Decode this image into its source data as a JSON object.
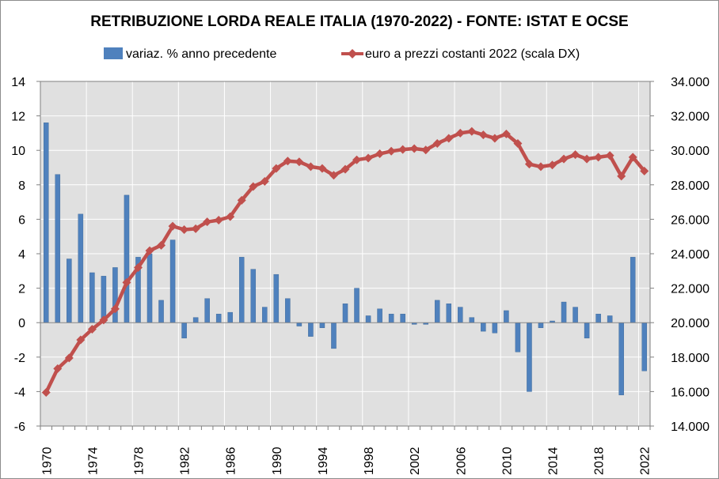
{
  "chart_data": {
    "type": "bar+line",
    "title": "RETRIBUZIONE LORDA REALE ITALIA (1970-2022) - FONTE: ISTAT E OCSE",
    "x": [
      1970,
      1971,
      1972,
      1973,
      1974,
      1975,
      1976,
      1977,
      1978,
      1979,
      1980,
      1981,
      1982,
      1983,
      1984,
      1985,
      1986,
      1987,
      1988,
      1989,
      1990,
      1991,
      1992,
      1993,
      1994,
      1995,
      1996,
      1997,
      1998,
      1999,
      2000,
      2001,
      2002,
      2003,
      2004,
      2005,
      2006,
      2007,
      2008,
      2009,
      2010,
      2011,
      2012,
      2013,
      2014,
      2015,
      2016,
      2017,
      2018,
      2019,
      2020,
      2021,
      2022
    ],
    "x_tick_labels": [
      "1970",
      "1974",
      "1978",
      "1982",
      "1986",
      "1990",
      "1994",
      "1998",
      "2002",
      "2006",
      "2010",
      "2014",
      "2018",
      "2022"
    ],
    "series": [
      {
        "name": "variaz. % anno precedente",
        "type": "bar",
        "axis": "left",
        "color": "#4f81bd",
        "values": [
          11.6,
          8.6,
          3.7,
          6.3,
          2.9,
          2.7,
          3.2,
          7.4,
          3.8,
          4.0,
          1.3,
          4.8,
          -0.9,
          0.3,
          1.4,
          0.5,
          0.6,
          3.8,
          3.1,
          0.9,
          2.8,
          1.4,
          -0.2,
          -0.8,
          -0.3,
          -1.5,
          1.1,
          2.0,
          0.4,
          0.8,
          0.5,
          0.5,
          -0.1,
          -0.1,
          1.3,
          1.1,
          0.9,
          0.3,
          -0.5,
          -0.6,
          0.7,
          -1.7,
          -4.0,
          -0.3,
          0.1,
          1.2,
          0.9,
          -0.9,
          0.5,
          0.4,
          -4.2,
          3.8,
          -2.8
        ]
      },
      {
        "name": "euro a prezzi costanti 2022 (scala DX)",
        "type": "line",
        "axis": "right",
        "color": "#c0504d",
        "values": [
          15950,
          17330,
          17950,
          19000,
          19620,
          20150,
          20800,
          22330,
          23200,
          24180,
          24490,
          25600,
          25400,
          25450,
          25850,
          25950,
          26150,
          27100,
          27900,
          28200,
          28950,
          29380,
          29330,
          29050,
          28950,
          28550,
          28900,
          29450,
          29550,
          29800,
          29950,
          30050,
          30100,
          30020,
          30400,
          30700,
          31000,
          31100,
          30900,
          30700,
          30950,
          30400,
          29200,
          29050,
          29150,
          29500,
          29750,
          29500,
          29600,
          29700,
          28500,
          29600,
          28800
        ]
      }
    ],
    "y_left": {
      "min": -6,
      "max": 14,
      "step": 2,
      "tick_labels": [
        "-6",
        "-4",
        "-2",
        "0",
        "2",
        "4",
        "6",
        "8",
        "10",
        "12",
        "14"
      ]
    },
    "y_right": {
      "min": 14000,
      "max": 34000,
      "step": 2000,
      "tick_labels": [
        "14.000",
        "16.000",
        "18.000",
        "20.000",
        "22.000",
        "24.000",
        "26.000",
        "28.000",
        "30.000",
        "32.000",
        "34.000"
      ]
    },
    "grid": true,
    "legend_position": "top",
    "plot_background": "#e0e0e0",
    "gridline_color": "#ffffff"
  }
}
